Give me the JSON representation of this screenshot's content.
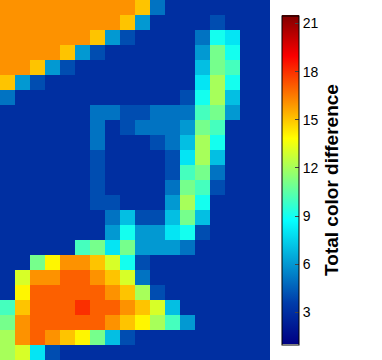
{
  "chart_data": {
    "type": "heatmap",
    "colorbar_title": "Total color difference",
    "color": "Jet",
    "tick_labels": false,
    "zlim": [
      1,
      21.5
    ],
    "zticks": [
      3,
      6,
      9,
      12,
      15,
      18,
      21
    ],
    "cells": [
      [
        16,
        16,
        16,
        16,
        16,
        16,
        16,
        16,
        16,
        15,
        5,
        3,
        3,
        3,
        3,
        3,
        3,
        3
      ],
      [
        16,
        16,
        16,
        16,
        16,
        16,
        16,
        16,
        15,
        6,
        3,
        3,
        3,
        3,
        4,
        3,
        3,
        3
      ],
      [
        16,
        16,
        16,
        16,
        16,
        16,
        15,
        6,
        4,
        3,
        3,
        3,
        3,
        5,
        9,
        8,
        3,
        3
      ],
      [
        16,
        16,
        16,
        16,
        15,
        6,
        4,
        3,
        3,
        3,
        3,
        3,
        3,
        6,
        11,
        9,
        3,
        3
      ],
      [
        16,
        16,
        15,
        6,
        4,
        3,
        3,
        3,
        3,
        3,
        3,
        3,
        3,
        7,
        11,
        10,
        3,
        3
      ],
      [
        15,
        6,
        4,
        3,
        3,
        3,
        3,
        3,
        3,
        3,
        3,
        3,
        3,
        8,
        12,
        9,
        3,
        3
      ],
      [
        5,
        3,
        3,
        3,
        3,
        3,
        3,
        3,
        3,
        3,
        3,
        3,
        4,
        9,
        12,
        7,
        3,
        3
      ],
      [
        3,
        3,
        3,
        3,
        3,
        3,
        5,
        5,
        4,
        4,
        5,
        5,
        5,
        10,
        11,
        6,
        3,
        3
      ],
      [
        3,
        3,
        3,
        3,
        3,
        3,
        5,
        3,
        4,
        5,
        5,
        5,
        6,
        11,
        10,
        3,
        3,
        3
      ],
      [
        3,
        3,
        3,
        3,
        3,
        3,
        5,
        3,
        3,
        3,
        4,
        5,
        7,
        12,
        9,
        3,
        3,
        3
      ],
      [
        3,
        3,
        3,
        3,
        3,
        3,
        4,
        3,
        3,
        3,
        3,
        4,
        8,
        12,
        7,
        3,
        3,
        3
      ],
      [
        3,
        3,
        3,
        3,
        3,
        3,
        4,
        3,
        3,
        3,
        3,
        4,
        10,
        11,
        5,
        3,
        3,
        3
      ],
      [
        3,
        3,
        3,
        3,
        3,
        3,
        4,
        3,
        3,
        3,
        3,
        5,
        11,
        10,
        4,
        3,
        3,
        3
      ],
      [
        3,
        3,
        3,
        3,
        3,
        3,
        4,
        4,
        3,
        3,
        3,
        6,
        12,
        9,
        3,
        3,
        3,
        3
      ],
      [
        3,
        3,
        3,
        3,
        3,
        3,
        3,
        5,
        7,
        4,
        4,
        7,
        11,
        7,
        3,
        3,
        3,
        3
      ],
      [
        3,
        3,
        3,
        3,
        3,
        3,
        3,
        6,
        9,
        6,
        6,
        8,
        9,
        4,
        3,
        3,
        3,
        3
      ],
      [
        3,
        3,
        3,
        3,
        3,
        10,
        11,
        8,
        11,
        6,
        6,
        6,
        5,
        3,
        3,
        3,
        3,
        3
      ],
      [
        3,
        3,
        11,
        14,
        16,
        16,
        15,
        13,
        9,
        4,
        3,
        3,
        3,
        3,
        3,
        3,
        3,
        3
      ],
      [
        3,
        13,
        16,
        16,
        17,
        17,
        16,
        15,
        13,
        5,
        3,
        3,
        3,
        3,
        3,
        3,
        3,
        3
      ],
      [
        3,
        14,
        17,
        17,
        17,
        17,
        17,
        16,
        15,
        12,
        4,
        3,
        3,
        3,
        3,
        3,
        3,
        3
      ],
      [
        10,
        15,
        17,
        17,
        17,
        18,
        17,
        17,
        16,
        15,
        13,
        7,
        3,
        3,
        3,
        3,
        3,
        3
      ],
      [
        11,
        16,
        17,
        17,
        17,
        17,
        17,
        16,
        15,
        14,
        12,
        10,
        6,
        3,
        3,
        3,
        3,
        3
      ],
      [
        12,
        16,
        17,
        16,
        15,
        14,
        11,
        7,
        4,
        3,
        3,
        3,
        3,
        3,
        3,
        3,
        3,
        3
      ],
      [
        12,
        13,
        8,
        4,
        3,
        3,
        3,
        3,
        3,
        3,
        3,
        3,
        3,
        3,
        3,
        3,
        3,
        3
      ]
    ]
  }
}
